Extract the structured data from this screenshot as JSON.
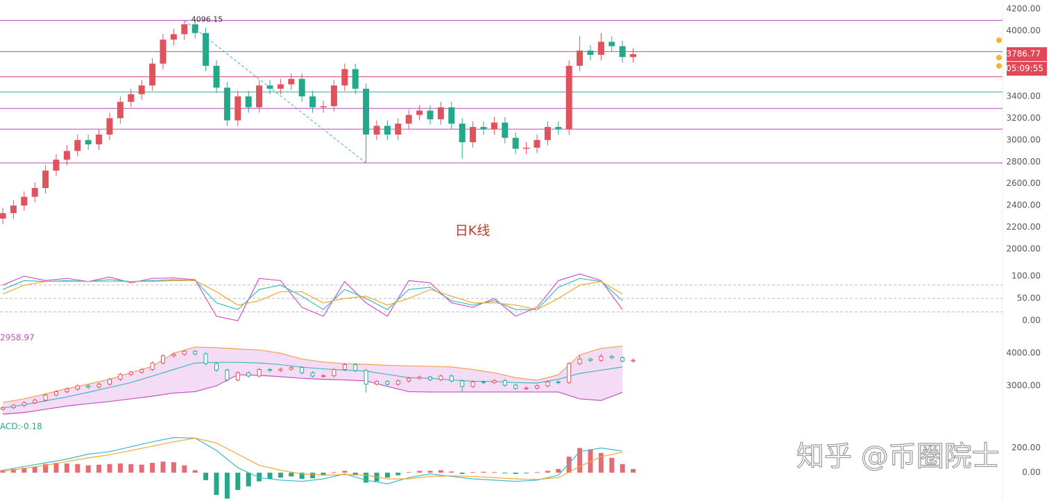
{
  "chart_data": [
    {
      "type": "candlestick",
      "title": "日K线",
      "annotation": "4096.15",
      "last_price_label": "3786.77",
      "countdown": "05:09:55",
      "open": [
        2280,
        2330,
        2400,
        2480,
        2560,
        2720,
        2820,
        2900,
        3000,
        2960,
        3050,
        3200,
        3350,
        3420,
        3500,
        3700,
        3920,
        3970,
        4060,
        3980,
        3680,
        3480,
        3180,
        3400,
        3300,
        3500,
        3470,
        3510,
        3560,
        3400,
        3300,
        3310,
        3500,
        3650,
        3470,
        3050,
        3130,
        3050,
        3150,
        3230,
        3270,
        3190,
        3300,
        3150,
        2980,
        3120,
        3100,
        3160,
        3020,
        2920,
        2930,
        3000,
        3120,
        3100,
        3680,
        3820,
        3780,
        3900,
        3860,
        3760
      ],
      "high": [
        2380,
        2450,
        2530,
        2610,
        2770,
        2870,
        2950,
        3050,
        3050,
        3100,
        3250,
        3400,
        3470,
        3550,
        3750,
        3970,
        4020,
        4096.15,
        4090,
        4030,
        3730,
        3530,
        3450,
        3450,
        3550,
        3550,
        3560,
        3610,
        3610,
        3450,
        3360,
        3550,
        3700,
        3700,
        3520,
        3180,
        3180,
        3200,
        3280,
        3320,
        3320,
        3350,
        3350,
        3200,
        3170,
        3170,
        3210,
        3210,
        3070,
        2980,
        3050,
        3170,
        3170,
        3730,
        3950,
        3870,
        3980,
        3950,
        3910,
        3840
      ],
      "low": [
        2230,
        2280,
        2350,
        2430,
        2510,
        2670,
        2770,
        2850,
        2910,
        2910,
        3000,
        3150,
        3300,
        3370,
        3450,
        3650,
        3870,
        3920,
        3930,
        3630,
        3430,
        3130,
        3130,
        3250,
        3250,
        3420,
        3420,
        3460,
        3350,
        3250,
        3250,
        3260,
        3450,
        3420,
        2790,
        3000,
        3000,
        3000,
        3100,
        3180,
        3140,
        3140,
        3100,
        2830,
        2930,
        3050,
        3050,
        2970,
        2870,
        2870,
        2880,
        2950,
        3050,
        3050,
        3630,
        3730,
        3730,
        3810,
        3710,
        3710
      ],
      "close": [
        2330,
        2400,
        2480,
        2560,
        2720,
        2820,
        2900,
        3000,
        2960,
        3050,
        3200,
        3350,
        3420,
        3500,
        3700,
        3920,
        3970,
        4060,
        3980,
        3680,
        3480,
        3180,
        3400,
        3300,
        3500,
        3470,
        3510,
        3560,
        3400,
        3300,
        3310,
        3500,
        3650,
        3470,
        3050,
        3130,
        3050,
        3150,
        3230,
        3270,
        3190,
        3300,
        3150,
        2980,
        3120,
        3100,
        3160,
        3020,
        2920,
        2930,
        3000,
        3120,
        3100,
        3680,
        3820,
        3780,
        3900,
        3860,
        3760,
        3786.77
      ],
      "up_color": "#e0525c",
      "down_color": "#23a98a",
      "trendline_color": "#4aa8c8",
      "ylim": [
        1918,
        4283
      ],
      "yticks": [
        {
          "value": 4200,
          "label": "4200.00"
        },
        {
          "value": 4000,
          "label": "4000.00"
        },
        {
          "value": 3400,
          "label": "3400.00"
        },
        {
          "value": 3200,
          "label": "3200.00"
        },
        {
          "value": 3000,
          "label": "3000.00"
        },
        {
          "value": 2800,
          "label": "2800.00"
        },
        {
          "value": 2600,
          "label": "2600.00"
        },
        {
          "value": 2400,
          "label": "2400.00"
        },
        {
          "value": 2200,
          "label": "2200.00"
        },
        {
          "value": 2000,
          "label": "2000.00"
        }
      ],
      "levels": [
        {
          "value": 4096.15,
          "color": "#b04cb8"
        },
        {
          "value": 3810,
          "color": "#b04cb8"
        },
        {
          "value": 3580,
          "color": "#d0405a"
        },
        {
          "value": 3440,
          "color": "#3aa6a0"
        },
        {
          "value": 3290,
          "color": "#b04cb8"
        },
        {
          "value": 3100,
          "color": "#b04cb8"
        },
        {
          "value": 2790,
          "color": "#b04cb8"
        }
      ]
    },
    {
      "type": "line",
      "ylim": [
        -20,
        128
      ],
      "yticks": [
        {
          "value": 100,
          "label": "100.00"
        },
        {
          "value": 50,
          "label": "50.00"
        },
        {
          "value": 0,
          "label": "0.00"
        }
      ],
      "levels": [
        80,
        50,
        20
      ],
      "series": [
        {
          "color": "#d050c8",
          "values": [
            80,
            100,
            90,
            95,
            88,
            98,
            85,
            95,
            96,
            92,
            10,
            0,
            95,
            90,
            30,
            10,
            88,
            40,
            10,
            90,
            85,
            40,
            30,
            50,
            10,
            30,
            90,
            105,
            90,
            25
          ]
        },
        {
          "color": "#3cb8c8",
          "values": [
            70,
            90,
            88,
            90,
            88,
            92,
            88,
            90,
            92,
            90,
            40,
            25,
            70,
            80,
            55,
            25,
            70,
            50,
            25,
            70,
            75,
            45,
            35,
            45,
            25,
            25,
            75,
            95,
            88,
            45
          ]
        },
        {
          "color": "#f0a830",
          "values": [
            60,
            80,
            88,
            88,
            88,
            88,
            88,
            88,
            90,
            90,
            65,
            35,
            45,
            65,
            65,
            40,
            50,
            55,
            35,
            50,
            70,
            55,
            40,
            40,
            35,
            25,
            50,
            80,
            88,
            60
          ]
        }
      ]
    },
    {
      "type": "bands",
      "label": "2958.97",
      "ylim": [
        1957,
        4660
      ],
      "yticks": [
        {
          "value": 4000,
          "label": "4000.00"
        },
        {
          "value": 3000,
          "label": "3000.00"
        }
      ],
      "fill": "#f5dcf6",
      "upper_color": "#f0a050",
      "middle_color": "#40b8c0",
      "lower_color": "#c050c0",
      "upper": [
        2490,
        2600,
        2750,
        2915,
        3050,
        3200,
        3400,
        3600,
        4000,
        4190,
        4170,
        4130,
        4100,
        4000,
        3820,
        3730,
        3680,
        3660,
        3630,
        3610,
        3600,
        3580,
        3500,
        3400,
        3250,
        3170,
        3340,
        3950,
        4150,
        4220
      ],
      "middle": [
        2320,
        2420,
        2540,
        2660,
        2800,
        2950,
        3100,
        3300,
        3500,
        3700,
        3720,
        3720,
        3700,
        3650,
        3570,
        3520,
        3480,
        3450,
        3350,
        3250,
        3230,
        3180,
        3140,
        3130,
        3100,
        3085,
        3200,
        3380,
        3480,
        3580
      ],
      "lower": [
        2130,
        2180,
        2280,
        2380,
        2450,
        2520,
        2600,
        2680,
        2780,
        2820,
        3000,
        3340,
        3320,
        3280,
        3230,
        3200,
        3180,
        3150,
        2980,
        2820,
        2810,
        2810,
        2810,
        2810,
        2810,
        2810,
        2810,
        2600,
        2550,
        2800
      ]
    },
    {
      "type": "macd",
      "label": "ACD:-0.18",
      "ylim": [
        -229,
        400
      ],
      "yticks": [
        {
          "value": 200,
          "label": "200.00"
        },
        {
          "value": 0,
          "label": "0.00"
        }
      ],
      "colors": [
        "#e0525c",
        "#23a98a"
      ],
      "histogram": [
        20,
        30,
        40,
        50,
        70,
        80,
        75,
        70,
        60,
        65,
        70,
        75,
        70,
        65,
        80,
        90,
        85,
        60,
        20,
        -60,
        -180,
        -210,
        -140,
        -110,
        -70,
        -50,
        -40,
        -30,
        -50,
        -45,
        -20,
        5,
        15,
        -20,
        -80,
        -70,
        -40,
        -20,
        5,
        15,
        15,
        20,
        10,
        -10,
        5,
        8,
        5,
        -5,
        -10,
        -5,
        5,
        15,
        30,
        130,
        200,
        190,
        160,
        120,
        70,
        30
      ],
      "series": [
        {
          "color": "#3cb8c8",
          "values": [
            20,
            50,
            80,
            110,
            150,
            170,
            210,
            250,
            285,
            280,
            180,
            40,
            -40,
            -60,
            -70,
            -50,
            -10,
            -60,
            -90,
            -40,
            -10,
            -30,
            -50,
            -60,
            -70,
            -60,
            -20,
            170,
            200,
            175
          ]
        },
        {
          "color": "#f0a830",
          "values": [
            10,
            35,
            60,
            90,
            120,
            145,
            180,
            215,
            250,
            280,
            240,
            150,
            60,
            20,
            -10,
            -20,
            -15,
            -20,
            -50,
            -50,
            -30,
            -25,
            -30,
            -40,
            -50,
            -55,
            -40,
            50,
            130,
            165
          ]
        }
      ]
    }
  ],
  "watermark": "知乎 @币圈院士"
}
